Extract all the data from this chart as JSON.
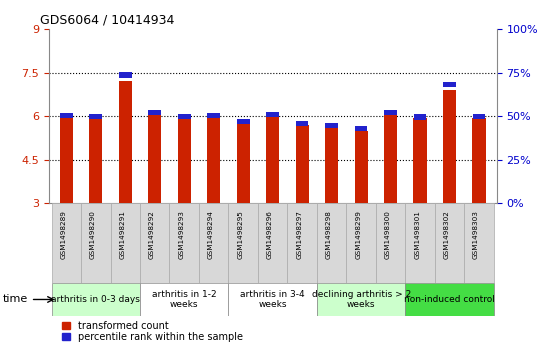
{
  "title": "GDS6064 / 10414934",
  "samples": [
    "GSM1498289",
    "GSM1498290",
    "GSM1498291",
    "GSM1498292",
    "GSM1498293",
    "GSM1498294",
    "GSM1498295",
    "GSM1498296",
    "GSM1498297",
    "GSM1498298",
    "GSM1498299",
    "GSM1498300",
    "GSM1498301",
    "GSM1498302",
    "GSM1498303"
  ],
  "red_values": [
    6.0,
    6.05,
    7.2,
    6.08,
    5.95,
    6.0,
    5.75,
    6.02,
    5.7,
    5.6,
    5.5,
    6.1,
    5.95,
    6.9,
    5.95
  ],
  "blue_values": [
    6.02,
    6.0,
    7.42,
    6.12,
    5.98,
    6.02,
    5.82,
    6.05,
    5.76,
    5.67,
    5.58,
    6.13,
    5.97,
    7.1,
    5.98
  ],
  "ylim_left": [
    3,
    9
  ],
  "yticks_left": [
    3,
    4.5,
    6,
    7.5,
    9
  ],
  "ytick_labels_left": [
    "3",
    "4.5",
    "6",
    "7.5",
    "9"
  ],
  "ylim_right": [
    0,
    100
  ],
  "yticks_right": [
    0,
    25,
    50,
    75,
    100
  ],
  "ytick_labels_right": [
    "0%",
    "25%",
    "50%",
    "75%",
    "100%"
  ],
  "groups": [
    {
      "label": "arthritis in 0-3 days",
      "start": 0,
      "end": 3,
      "color": "#ccffcc"
    },
    {
      "label": "arthritis in 1-2\nweeks",
      "start": 3,
      "end": 6,
      "color": "#ffffff"
    },
    {
      "label": "arthritis in 3-4\nweeks",
      "start": 6,
      "end": 9,
      "color": "#ffffff"
    },
    {
      "label": "declining arthritis > 2\nweeks",
      "start": 9,
      "end": 12,
      "color": "#ccffcc"
    },
    {
      "label": "non-induced control",
      "start": 12,
      "end": 15,
      "color": "#44dd44"
    }
  ],
  "bar_color_red": "#cc2200",
  "bar_color_blue": "#2222cc",
  "bar_width": 0.45,
  "bg_color": "#ffffff",
  "tick_color_left": "#cc2200",
  "tick_color_right": "#0000cc",
  "legend_red": "transformed count",
  "legend_blue": "percentile rank within the sample",
  "time_label": "time",
  "grid_dotted_values": [
    4.5,
    6.0,
    7.5
  ],
  "sample_box_color": "#d8d8d8",
  "sample_box_edge": "#aaaaaa"
}
